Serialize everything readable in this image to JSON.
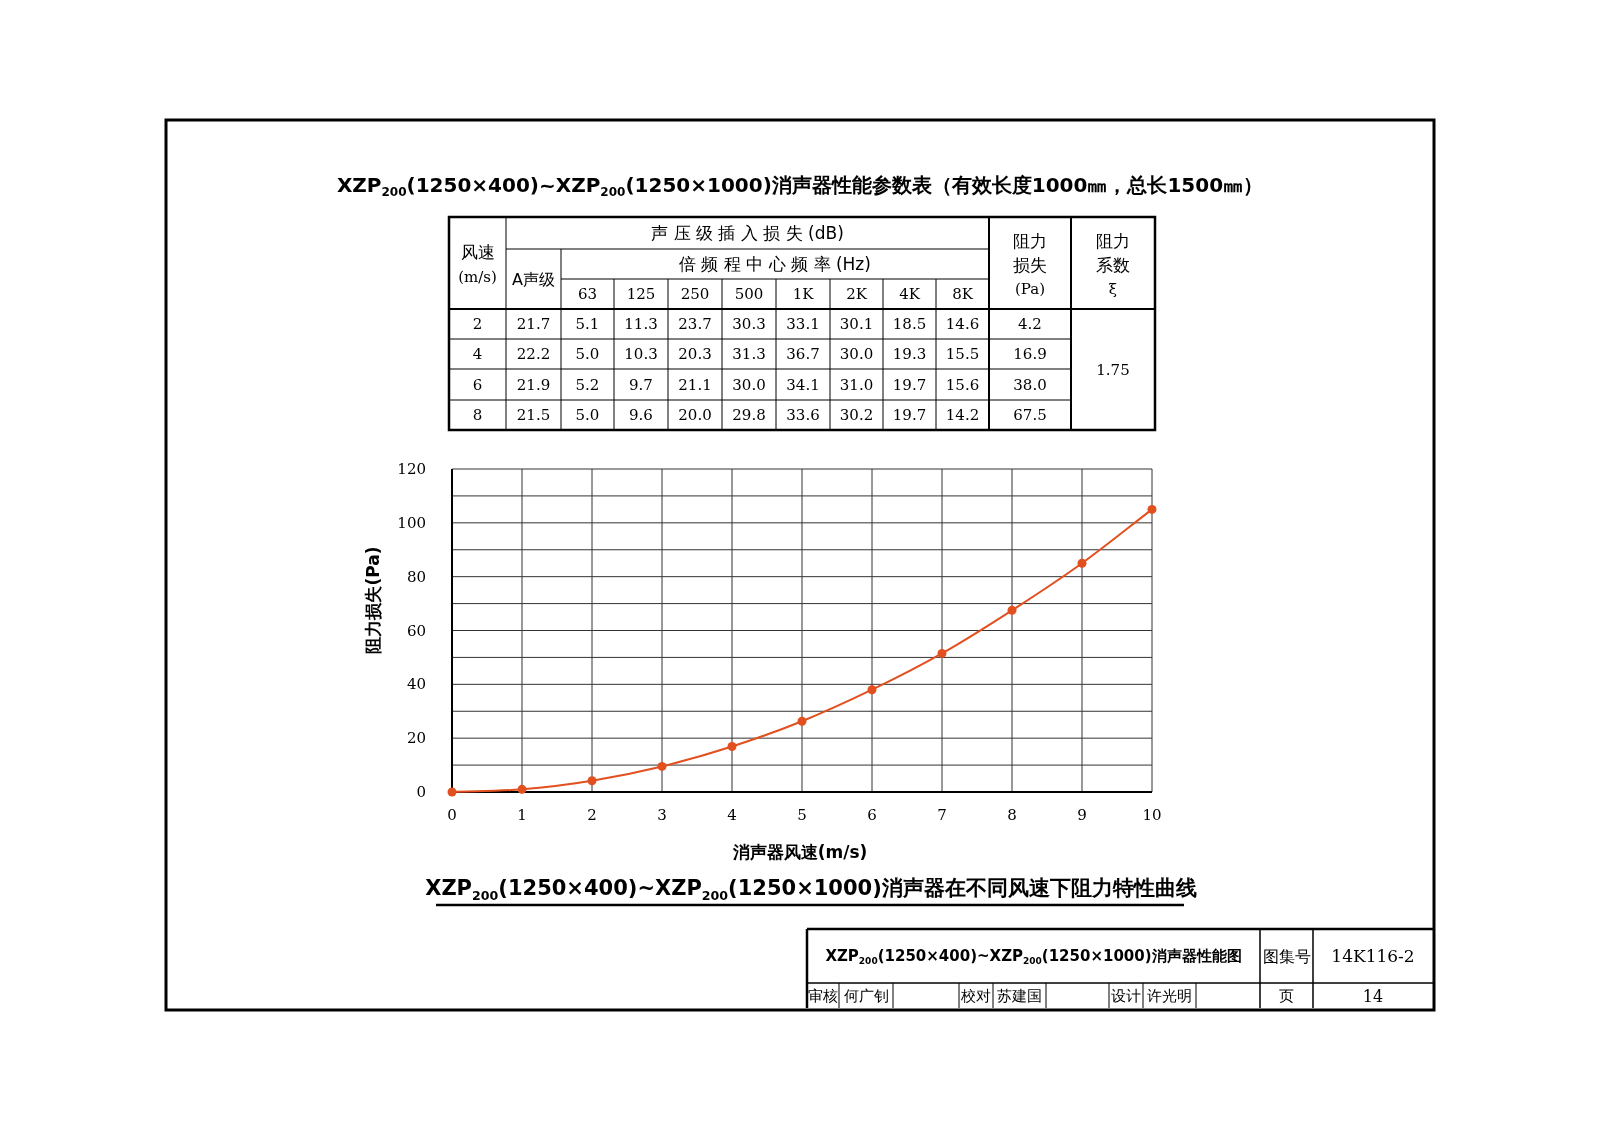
{
  "chart_data": [
    {
      "type": "other",
      "title": "XZP$_{200}$(1250×400)~XZP$_{200}$(1250×1000)消声器性能参数表（有效长度1000㎜，总长1500㎜）",
      "annotations": [
        "风速",
        "(m/s)",
        "声 压 级 插 入 损 失 (dB)",
        "A声级",
        "倍 频 程 中 心 频 率 (Hz)",
        "阻力",
        "损失",
        "(Pa)",
        "阻力",
        "系数",
        "ξ"
      ],
      "categories": [
        "63",
        "125",
        "250",
        "500",
        "1K",
        "2K",
        "4K",
        "8K"
      ],
      "y_categories": [
        "2",
        "4",
        "6",
        "8"
      ],
      "cell_labels": [
        [
          "21.7",
          "5.1",
          "11.3",
          "23.7",
          "30.3",
          "33.1",
          "30.1",
          "18.5",
          "14.6",
          "4.2",
          "1.75"
        ],
        [
          "22.2",
          "5.0",
          "10.3",
          "20.3",
          "31.3",
          "36.7",
          "30.0",
          "19.3",
          "15.5",
          "16.9",
          null
        ],
        [
          "21.9",
          "5.2",
          "9.7",
          "21.1",
          "30.0",
          "34.1",
          "31.0",
          "19.7",
          "15.6",
          "38.0",
          null
        ],
        [
          "21.5",
          "5.0",
          "9.6",
          "20.0",
          "29.8",
          "33.6",
          "30.2",
          "19.7",
          "14.2",
          "67.5",
          null
        ]
      ]
    },
    {
      "type": "line",
      "title": "XZP$_{200}$(1250×400)~XZP$_{200}$(1250×1000)消声器在不同风速下阻力特性曲线",
      "xlabel": "消声器风速(m/s)",
      "ylabel": "阻力损失(Pa)",
      "x": [
        0,
        1,
        2,
        3,
        4,
        5,
        6,
        7,
        8,
        9,
        10
      ],
      "series": [
        {
          "color": "#e2501f",
          "values": [
            0,
            1,
            4.2,
            9.5,
            16.9,
            26.3,
            38,
            51.5,
            67.5,
            85,
            105
          ]
        }
      ],
      "xlim": [
        0,
        10
      ],
      "xticks": [
        0,
        1,
        2,
        3,
        4,
        5,
        6,
        7,
        8,
        9,
        10
      ],
      "ylim": [
        0,
        120
      ],
      "yticks": [
        0,
        {
          "value": 10,
          "label": null
        },
        20,
        {
          "value": 30,
          "label": null
        },
        40,
        {
          "value": 50,
          "label": null
        },
        60,
        {
          "value": 70,
          "label": null
        },
        80,
        {
          "value": 90,
          "label": null
        },
        100,
        {
          "value": 110,
          "label": null
        },
        120
      ],
      "grid": true,
      "marker": "circle",
      "line_style": "solid"
    },
    {
      "type": "other",
      "annotations": [
        "XZP$_{200}$(1250×400)~XZP$_{200}$(1250×1000)消声器性能图",
        "图集号",
        "14K116-2",
        "审核",
        "何广钊",
        "校对",
        "苏建国",
        "设计",
        "许光明",
        "页",
        "14"
      ]
    }
  ]
}
